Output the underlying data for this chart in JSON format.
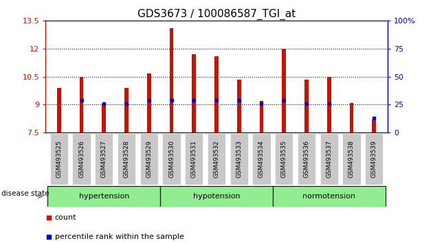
{
  "title": "GDS3673 / 100086587_TGI_at",
  "samples": [
    "GSM493525",
    "GSM493526",
    "GSM493527",
    "GSM493528",
    "GSM493529",
    "GSM493530",
    "GSM493531",
    "GSM493532",
    "GSM493533",
    "GSM493534",
    "GSM493535",
    "GSM493536",
    "GSM493537",
    "GSM493538",
    "GSM493539"
  ],
  "counts": [
    9.9,
    10.5,
    9.05,
    9.9,
    10.65,
    13.1,
    11.7,
    11.6,
    10.35,
    9.2,
    12.0,
    10.35,
    10.5,
    9.1,
    8.2
  ],
  "percentiles": [
    null,
    29,
    26,
    26,
    29,
    29,
    29,
    29,
    29,
    26,
    29,
    26,
    26,
    null,
    13
  ],
  "ylim_left": [
    7.5,
    13.5
  ],
  "ylim_right": [
    0,
    100
  ],
  "yticks_left": [
    7.5,
    9.0,
    10.5,
    12.0,
    13.5
  ],
  "yticks_right": [
    0,
    25,
    50,
    75,
    100
  ],
  "ytick_labels_left": [
    "7.5",
    "9",
    "10.5",
    "12",
    "13.5"
  ],
  "ytick_labels_right": [
    "0",
    "25",
    "50",
    "75",
    "100%"
  ],
  "hlines": [
    9.0,
    10.5,
    12.0
  ],
  "groups": [
    {
      "label": "hypertension",
      "start": 0,
      "end": 5
    },
    {
      "label": "hypotension",
      "start": 5,
      "end": 10
    },
    {
      "label": "normotension",
      "start": 10,
      "end": 15
    }
  ],
  "group_fill": "#90EE90",
  "bar_color": "#CC1100",
  "dot_color": "#0000CC",
  "bar_width": 0.18,
  "tick_bg_color": "#C8C8C8",
  "legend_items": [
    {
      "label": "count",
      "color": "#CC1100"
    },
    {
      "label": "percentile rank within the sample",
      "color": "#0000CC"
    }
  ],
  "disease_state_label": "disease state",
  "title_fontsize": 11
}
